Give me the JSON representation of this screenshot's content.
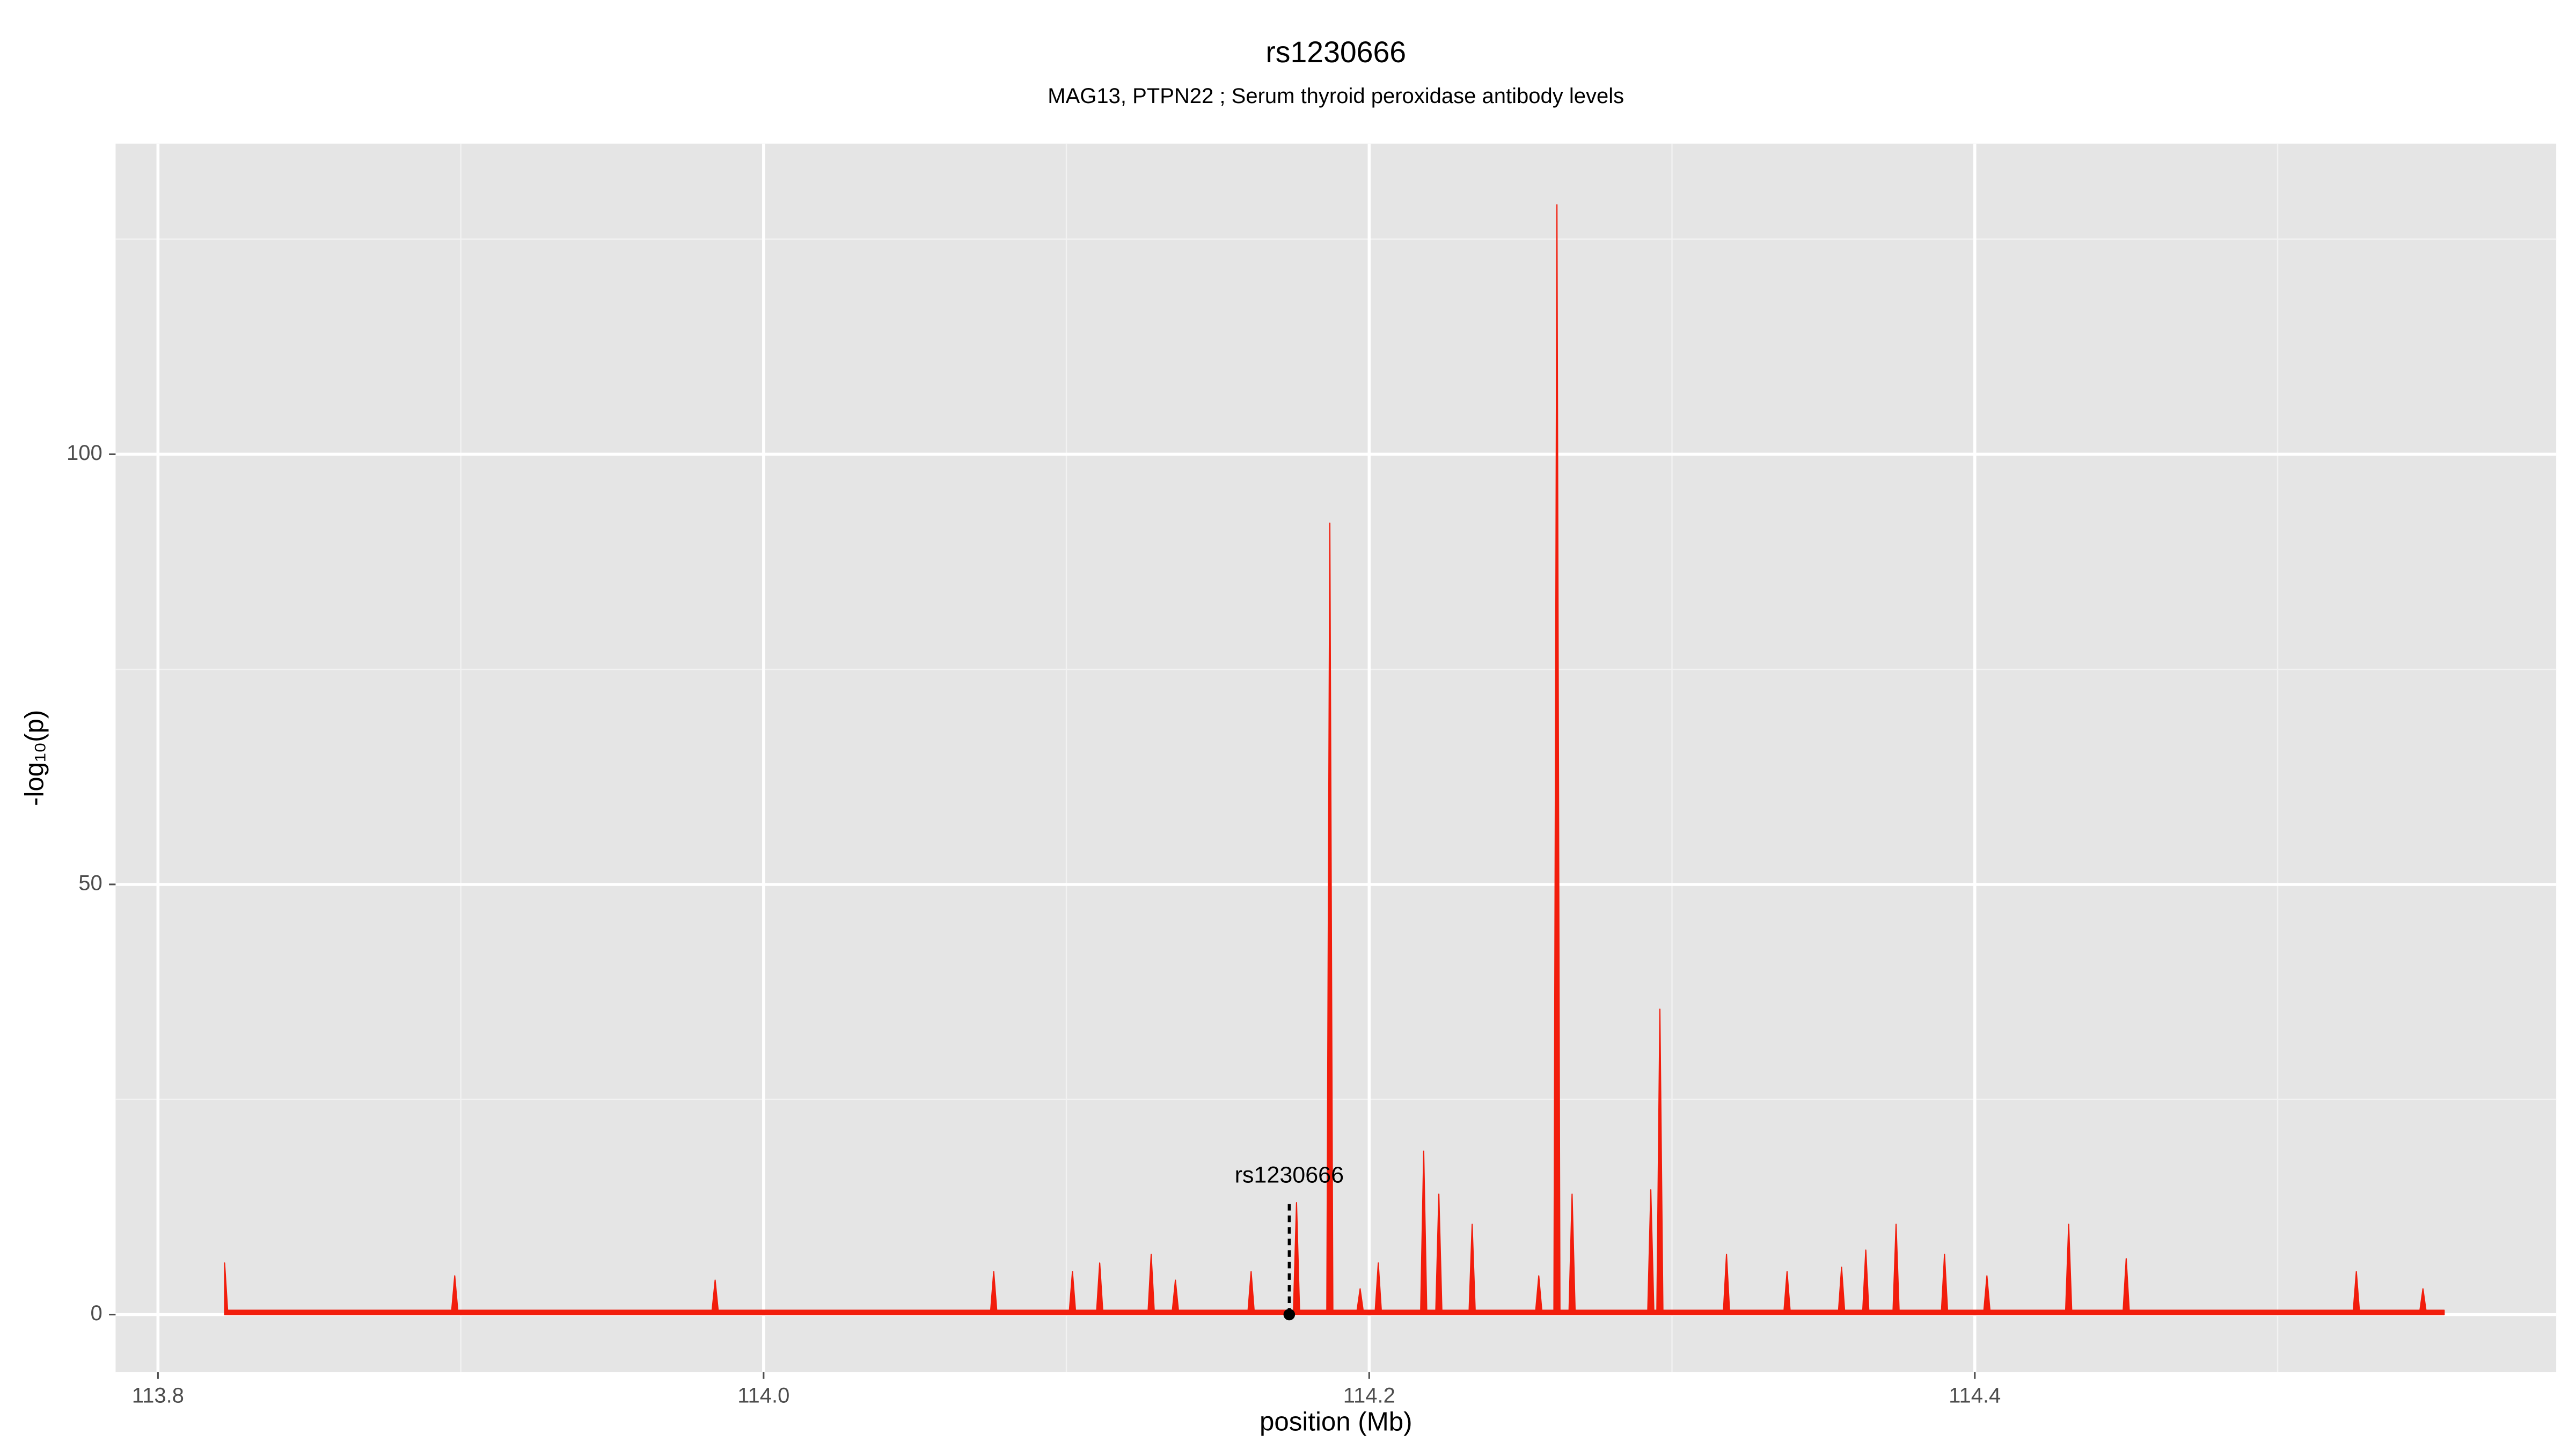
{
  "chart_data": {
    "type": "area",
    "title": "rs1230666",
    "subtitle": "MAG13, PTPN22 ; Serum thyroid peroxidase antibody levels",
    "x_label": "position (Mb)",
    "y_label": "-log₁₀(p)",
    "color": "#f21d0c",
    "x": [
      113.822,
      113.823,
      113.897,
      113.898,
      113.899,
      113.983,
      113.984,
      113.985,
      114.075,
      114.076,
      114.077,
      114.101,
      114.102,
      114.103,
      114.11,
      114.111,
      114.112,
      114.127,
      114.128,
      114.129,
      114.135,
      114.136,
      114.137,
      114.16,
      114.161,
      114.162,
      114.175,
      114.176,
      114.177,
      114.186,
      114.187,
      114.188,
      114.196,
      114.197,
      114.198,
      114.202,
      114.203,
      114.204,
      114.217,
      114.218,
      114.219,
      114.222,
      114.223,
      114.224,
      114.233,
      114.234,
      114.235,
      114.255,
      114.256,
      114.257,
      114.261,
      114.262,
      114.263,
      114.266,
      114.267,
      114.268,
      114.292,
      114.293,
      114.294,
      114.295,
      114.296,
      114.297,
      114.317,
      114.318,
      114.319,
      114.337,
      114.338,
      114.339,
      114.355,
      114.356,
      114.357,
      114.363,
      114.364,
      114.365,
      114.373,
      114.374,
      114.375,
      114.389,
      114.39,
      114.391,
      114.403,
      114.404,
      114.405,
      114.43,
      114.431,
      114.432,
      114.449,
      114.45,
      114.451,
      114.525,
      114.526,
      114.527,
      114.547,
      114.548,
      114.549,
      114.555
    ],
    "values": [
      6,
      0.5,
      0.5,
      4.5,
      0.5,
      0.5,
      4,
      0.5,
      0.5,
      5,
      0.5,
      0.5,
      5,
      0.5,
      0.5,
      6,
      0.5,
      0.5,
      7,
      0.5,
      0.5,
      4,
      0.5,
      0.5,
      5,
      0.5,
      0.5,
      13,
      0.5,
      0.5,
      92,
      0.5,
      0.5,
      3,
      0.5,
      0.5,
      6,
      0.5,
      0.5,
      19,
      0.5,
      0.5,
      14,
      0.5,
      0.5,
      10.5,
      0.5,
      0.5,
      4.5,
      0.5,
      0.5,
      129,
      0.5,
      0.5,
      14,
      0.5,
      0.5,
      14.5,
      0.5,
      0.5,
      35.5,
      0.5,
      0.5,
      7,
      0.5,
      0.5,
      5,
      0.5,
      0.5,
      5.5,
      0.5,
      0.5,
      7.5,
      0.5,
      0.5,
      10.5,
      0.5,
      0.5,
      7,
      0.5,
      0.5,
      4.5,
      0.5,
      0.5,
      10.5,
      0.5,
      0.5,
      6.5,
      0.5,
      0.5,
      5,
      0.5,
      0.5,
      3,
      0.5,
      0.5
    ],
    "annotation": {
      "label": "rs1230666",
      "x": 114.1736,
      "y": 0,
      "line_top": 13
    },
    "xlim": [
      113.786,
      114.592
    ],
    "ylim": [
      -6.7,
      136.1
    ],
    "xticks": [
      113.8,
      {
        "value": 114,
        "label": "114.0"
      },
      114.2,
      114.4
    ],
    "yticks": [
      0,
      50,
      100
    ],
    "x_minor_gridlines": [
      113.9,
      114.1,
      114.3,
      114.5
    ],
    "y_minor_gridlines": [
      25,
      75,
      125
    ],
    "grid": true
  }
}
